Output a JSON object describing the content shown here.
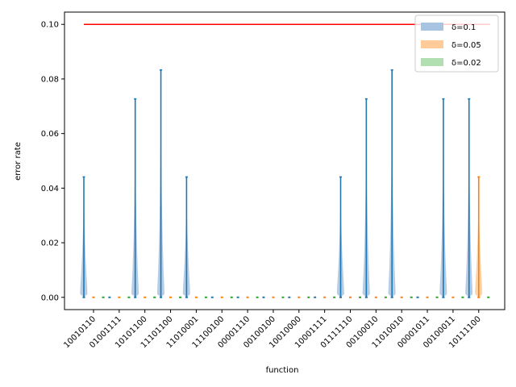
{
  "chart_data": {
    "type": "violin",
    "xlabel": "function",
    "ylabel": "error rate",
    "ylim": [
      -0.0045,
      0.1045
    ],
    "yticks": [
      0.0,
      0.02,
      0.04,
      0.06,
      0.08,
      0.1
    ],
    "ytick_labels": [
      "0.00",
      "0.02",
      "0.04",
      "0.06",
      "0.08",
      "0.10"
    ],
    "categories": [
      "10010110",
      "01001111",
      "10101100",
      "11101100",
      "11010001",
      "11100100",
      "00001110",
      "00100100",
      "10010000",
      "10001111",
      "01111110",
      "00100010",
      "11010010",
      "00001011",
      "00100011",
      "10111100"
    ],
    "reference_line": {
      "value": 0.1,
      "color": "#ff0000"
    },
    "legend_position": "upper-right",
    "series": [
      {
        "name": "δ=0.1",
        "color": "#1f77b4",
        "fill": "#a9c4e2",
        "max": [
          0.0441,
          0.0,
          0.0727,
          0.0833,
          0.0441,
          0.0,
          0.0,
          0.0,
          0.0,
          0.0,
          0.0441,
          0.0727,
          0.0833,
          0.0,
          0.0727,
          0.0727
        ]
      },
      {
        "name": "δ=0.05",
        "color": "#ff7f0e",
        "fill": "#ffcc99",
        "max": [
          0.0,
          0.0,
          0.0,
          0.0,
          0.0,
          0.0,
          0.0,
          0.0,
          0.0,
          0.0,
          0.0,
          0.0,
          0.0,
          0.0,
          0.0,
          0.0441
        ]
      },
      {
        "name": "δ=0.02",
        "color": "#2ca02c",
        "fill": "#b2dfb2",
        "max": [
          0.0,
          0.0,
          0.0,
          0.0,
          0.0,
          0.0,
          0.0,
          0.0,
          0.0,
          0.0,
          0.0,
          0.0,
          0.0,
          0.0,
          0.0,
          0.0
        ]
      }
    ]
  }
}
